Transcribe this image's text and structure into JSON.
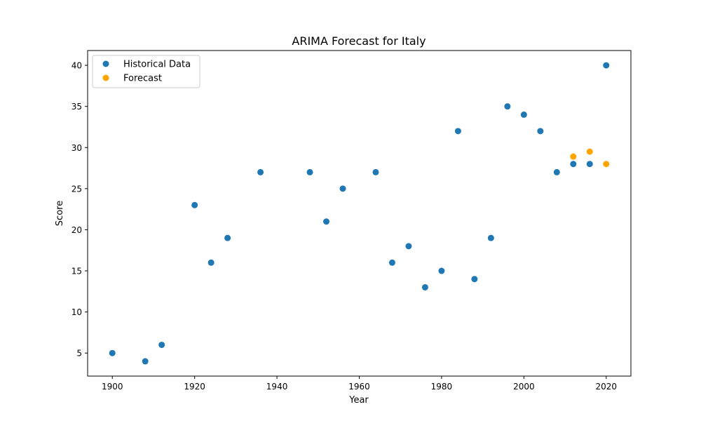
{
  "chart_data": {
    "type": "scatter",
    "title": "ARIMA Forecast for Italy",
    "xlabel": "Year",
    "ylabel": "Score",
    "xlim": [
      1894,
      2026
    ],
    "ylim": [
      2.2,
      41.8
    ],
    "x_ticks": [
      1900,
      1920,
      1940,
      1960,
      1980,
      2000,
      2020
    ],
    "y_ticks": [
      5,
      10,
      15,
      20,
      25,
      30,
      35,
      40
    ],
    "grid": false,
    "legend_position": "top-left",
    "series": [
      {
        "name": "Historical Data",
        "color": "#1f77b4",
        "points": [
          {
            "x": 1900,
            "y": 5
          },
          {
            "x": 1908,
            "y": 4
          },
          {
            "x": 1912,
            "y": 6
          },
          {
            "x": 1920,
            "y": 23
          },
          {
            "x": 1924,
            "y": 16
          },
          {
            "x": 1928,
            "y": 19
          },
          {
            "x": 1936,
            "y": 27
          },
          {
            "x": 1948,
            "y": 27
          },
          {
            "x": 1952,
            "y": 21
          },
          {
            "x": 1956,
            "y": 25
          },
          {
            "x": 1964,
            "y": 27
          },
          {
            "x": 1968,
            "y": 16
          },
          {
            "x": 1972,
            "y": 18
          },
          {
            "x": 1976,
            "y": 13
          },
          {
            "x": 1980,
            "y": 15
          },
          {
            "x": 1984,
            "y": 32
          },
          {
            "x": 1988,
            "y": 14
          },
          {
            "x": 1992,
            "y": 19
          },
          {
            "x": 1996,
            "y": 35
          },
          {
            "x": 2000,
            "y": 34
          },
          {
            "x": 2004,
            "y": 32
          },
          {
            "x": 2008,
            "y": 27
          },
          {
            "x": 2012,
            "y": 28
          },
          {
            "x": 2016,
            "y": 28
          },
          {
            "x": 2020,
            "y": 40
          }
        ]
      },
      {
        "name": "Forecast",
        "color": "#ffa500",
        "points": [
          {
            "x": 2012,
            "y": 28.9
          },
          {
            "x": 2016,
            "y": 29.5
          },
          {
            "x": 2020,
            "y": 28.0
          }
        ]
      }
    ]
  }
}
